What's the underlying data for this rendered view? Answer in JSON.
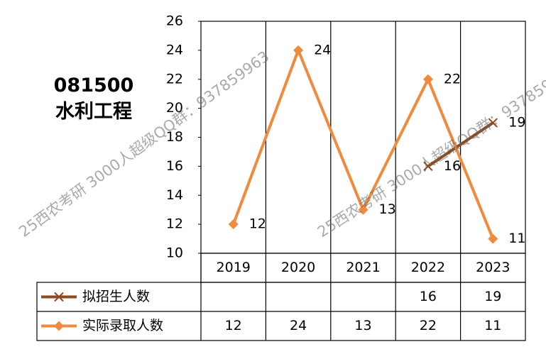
{
  "chart_data": {
    "type": "line",
    "title": "081500 水利工程",
    "categories": [
      "2019",
      "2020",
      "2021",
      "2022",
      "2023"
    ],
    "series": [
      {
        "name": "拟招生人数",
        "color": "#8c4a1e",
        "marker": "x",
        "values": [
          null,
          null,
          null,
          16,
          19
        ]
      },
      {
        "name": "实际录取人数",
        "color": "#f08a3c",
        "marker": "diamond",
        "values": [
          12,
          24,
          13,
          22,
          11
        ]
      }
    ],
    "ylim": [
      10,
      26
    ],
    "yticks": [
      10,
      12,
      14,
      16,
      18,
      20,
      22,
      24,
      26
    ],
    "data_table": true,
    "watermark": "25西农考研 3000人超级QQ群：937859963"
  }
}
